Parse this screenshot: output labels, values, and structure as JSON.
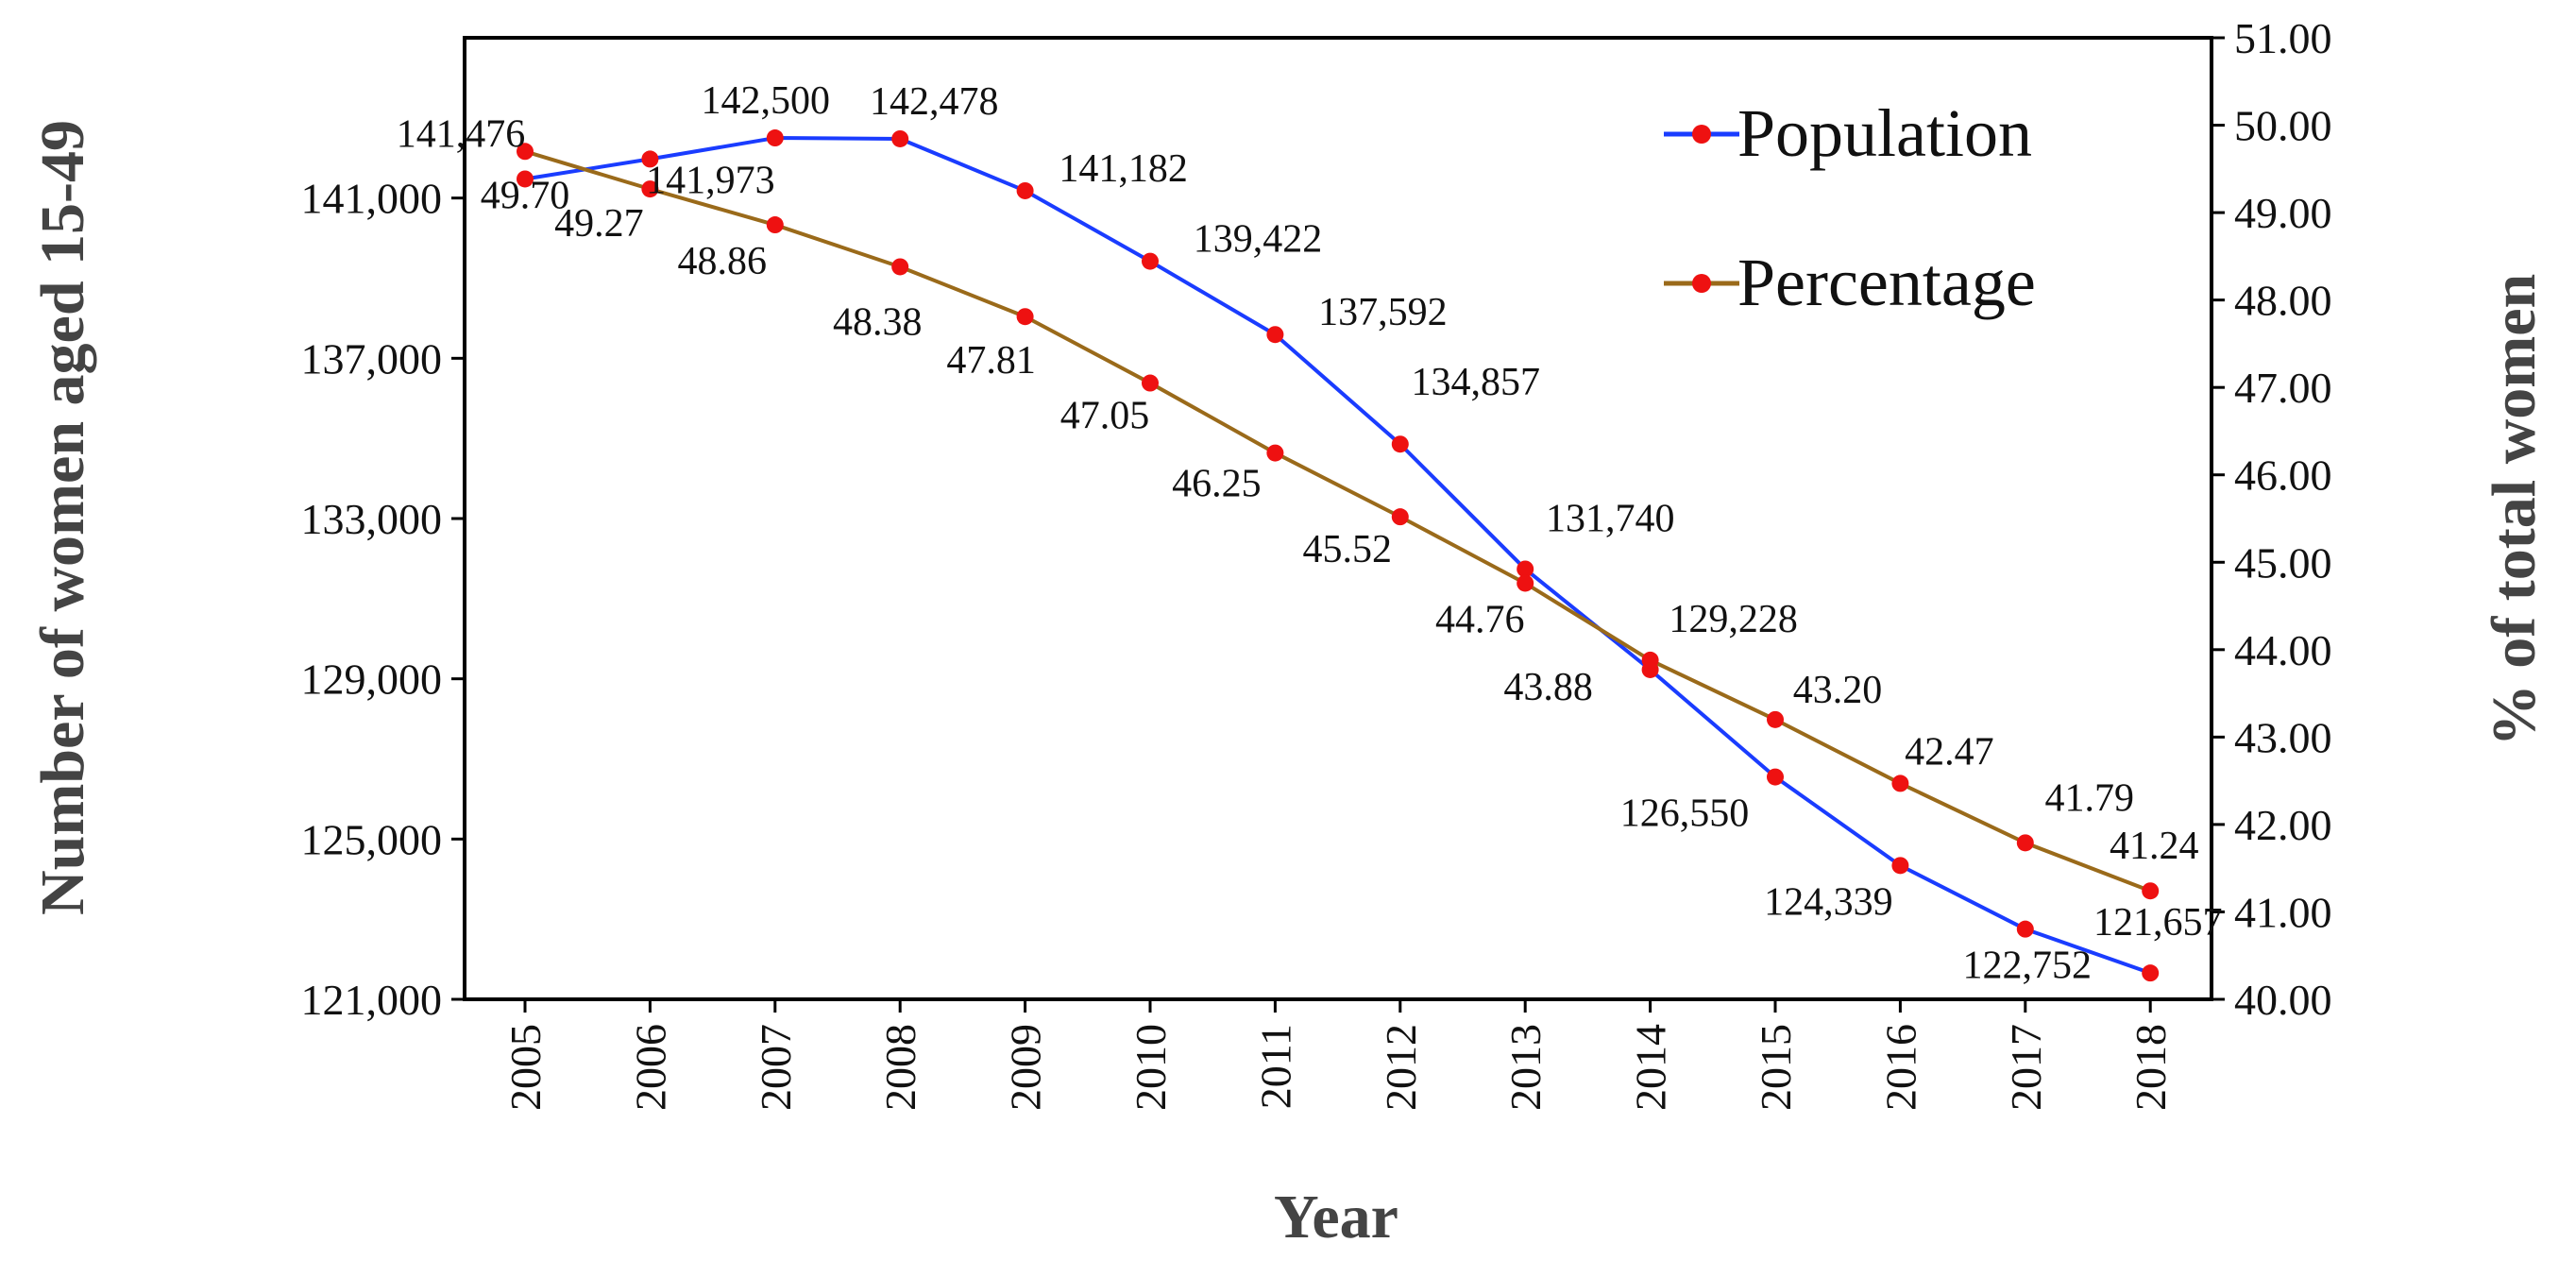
{
  "chart_data": {
    "type": "line",
    "xlabel": "Year",
    "ylabel_left": "Number of women aged 15-49",
    "ylabel_right": "% of total women",
    "categories": [
      "2005",
      "2006",
      "2007",
      "2008",
      "2009",
      "2010",
      "2011",
      "2012",
      "2013",
      "2014",
      "2015",
      "2016",
      "2017",
      "2018"
    ],
    "y_left": {
      "lim": [
        121000,
        145000
      ],
      "ticks": [
        121000,
        125000,
        129000,
        133000,
        137000,
        141000
      ],
      "tick_labels": [
        "121,000",
        "125,000",
        "129,000",
        "133,000",
        "137,000",
        "141,000"
      ]
    },
    "y_right": {
      "lim": [
        40.0,
        51.0
      ],
      "ticks": [
        40,
        41,
        42,
        43,
        44,
        45,
        46,
        47,
        48,
        49,
        50,
        51
      ],
      "tick_labels": [
        "40.00",
        "41.00",
        "42.00",
        "43.00",
        "44.00",
        "45.00",
        "46.00",
        "47.00",
        "48.00",
        "49.00",
        "50.00",
        "51.00"
      ]
    },
    "series": [
      {
        "name": "Population",
        "axis": "left",
        "color": "#1a3cff",
        "marker_color": "#ee1111",
        "values": [
          141476,
          141973,
          142500,
          142478,
          141182,
          139422,
          137592,
          134857,
          131740,
          129228,
          126550,
          124339,
          122752,
          121657
        ],
        "labels": [
          "141,476",
          "141,973",
          "142,500",
          "142,478",
          "141,182",
          "139,422",
          "137,592",
          "134,857",
          "131,740",
          "129,228",
          "126,550",
          "124,339",
          "122,752",
          "121,657"
        ]
      },
      {
        "name": "Percentage",
        "axis": "right",
        "color": "#9a6a1a",
        "marker_color": "#ee1111",
        "values": [
          49.7,
          49.27,
          48.86,
          48.38,
          47.81,
          47.05,
          46.25,
          45.52,
          44.76,
          43.88,
          43.2,
          42.47,
          41.79,
          41.24
        ],
        "labels": [
          "49.70",
          "49.27",
          "48.86",
          "48.38",
          "47.81",
          "47.05",
          "46.25",
          "45.52",
          "44.76",
          "43.88",
          "43.20",
          "42.47",
          "41.79",
          "41.24"
        ]
      }
    ],
    "legend_position": "top-right",
    "grid": false
  }
}
